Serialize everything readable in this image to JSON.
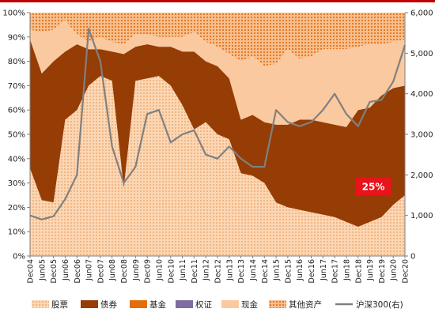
{
  "chart_data": {
    "type": "area",
    "stacked": true,
    "stack_mode": "percent",
    "title": "",
    "x": [
      "Dec04",
      "Jun05",
      "Dec05",
      "Jun06",
      "Dec06",
      "Jun07",
      "Dec07",
      "Jun08",
      "Dec08",
      "Jun09",
      "Dec09",
      "Jun10",
      "Dec10",
      "Jun11",
      "Dec11",
      "Jun12",
      "Dec12",
      "Jun13",
      "Dec13",
      "Jun14",
      "Dec14",
      "Jun15",
      "Dec15",
      "Jun16",
      "Dec16",
      "Jun17",
      "Dec17",
      "Jun18",
      "Dec18",
      "Jun19",
      "Dec19",
      "Jun20",
      "Dec20"
    ],
    "series": [
      {
        "name": "股票",
        "style": "dotted",
        "color": "#f1b27c",
        "values": [
          36,
          23,
          22,
          56,
          60,
          70,
          74,
          72,
          28,
          72,
          73,
          74,
          70,
          62,
          52,
          55,
          50,
          48,
          34,
          33,
          30,
          22,
          20,
          19,
          18,
          17,
          16,
          14,
          12,
          14,
          16,
          21,
          25
        ]
      },
      {
        "name": "债券",
        "color": "#953d05",
        "values": [
          53,
          52,
          58,
          28,
          27,
          15,
          11,
          12,
          55,
          14,
          14,
          12,
          16,
          22,
          32,
          25,
          28,
          25,
          22,
          25,
          25,
          32,
          34,
          37,
          38,
          38,
          38,
          39,
          48,
          47,
          50,
          48,
          45
        ]
      },
      {
        "name": "基金",
        "color": "#e46c0a",
        "values": [
          0,
          0,
          0,
          0,
          0,
          0,
          0,
          0,
          0,
          0,
          0,
          0,
          0,
          0,
          0,
          0,
          0,
          0,
          0,
          0,
          0,
          0,
          0,
          0,
          0,
          0,
          0,
          0,
          0,
          0,
          0,
          0,
          0
        ]
      },
      {
        "name": "权证",
        "color": "#7f6ca0",
        "values": [
          0,
          0,
          0,
          0,
          0,
          0,
          0,
          0,
          0,
          0,
          0,
          0,
          0,
          0,
          0,
          0,
          0,
          0,
          0,
          0,
          0,
          0,
          0,
          0,
          0,
          0,
          0,
          0,
          0,
          0,
          0,
          0,
          0
        ]
      },
      {
        "name": "现金",
        "color": "#fbc99f",
        "values": [
          4,
          17,
          13,
          13,
          4,
          3,
          5,
          4,
          4,
          5,
          4,
          4,
          4,
          6,
          8,
          8,
          8,
          10,
          24,
          24,
          23,
          25,
          31,
          25,
          26,
          30,
          31,
          32,
          26,
          26,
          21,
          19,
          19
        ]
      },
      {
        "name": "其他资产",
        "style": "dotted",
        "color": "#e8701a",
        "values": [
          7,
          8,
          7,
          3,
          9,
          12,
          10,
          12,
          13,
          9,
          9,
          10,
          10,
          10,
          8,
          12,
          14,
          17,
          20,
          18,
          22,
          21,
          15,
          19,
          18,
          15,
          15,
          15,
          14,
          13,
          13,
          12,
          11
        ]
      }
    ],
    "line_series": {
      "name": "沪深300(右)",
      "axis": "right",
      "color": "#808080",
      "values": [
        1000,
        900,
        980,
        1400,
        2000,
        5600,
        4800,
        2700,
        1800,
        2200,
        3500,
        3600,
        2800,
        3000,
        3100,
        2500,
        2400,
        2700,
        2400,
        2200,
        2200,
        3600,
        3300,
        3200,
        3300,
        3600,
        4000,
        3500,
        3200,
        3800,
        3850,
        4300,
        5200
      ]
    },
    "y_left": {
      "min": 0,
      "max": 100,
      "ticks": [
        "0%",
        "10%",
        "20%",
        "30%",
        "40%",
        "50%",
        "60%",
        "70%",
        "80%",
        "90%",
        "100%"
      ]
    },
    "y_right": {
      "min": 0,
      "max": 6000,
      "ticks": [
        "0",
        "1,000",
        "2,000",
        "3,000",
        "4,000",
        "5,000",
        "6,000"
      ]
    },
    "annotation": {
      "text": "25%",
      "color": "#e8131b"
    },
    "legend": {
      "placement": "bottom"
    },
    "grid": false
  }
}
